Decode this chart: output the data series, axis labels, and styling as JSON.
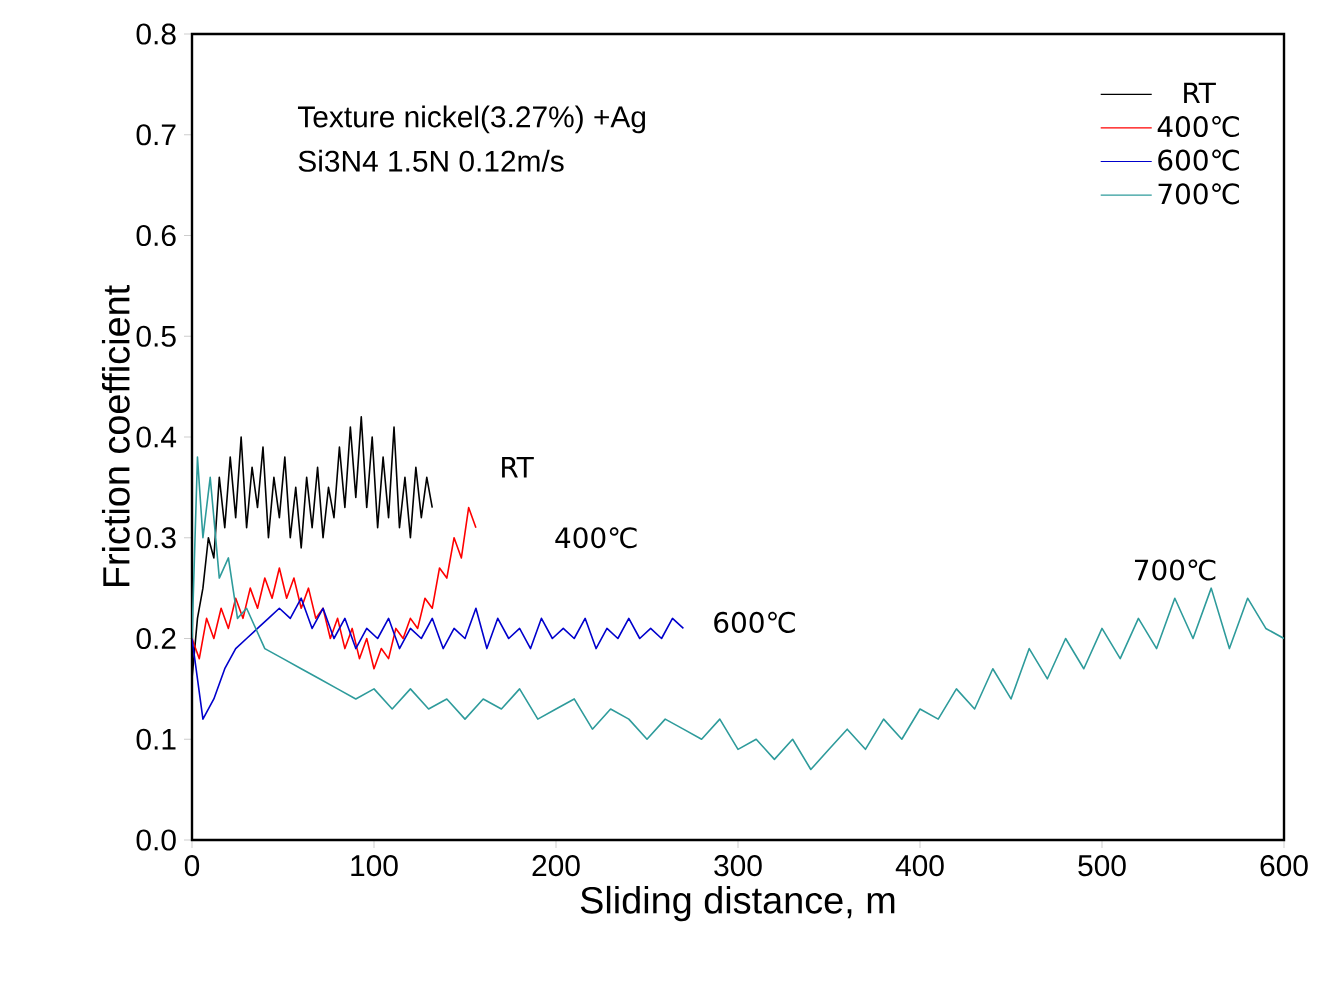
{
  "chart_data": {
    "type": "line",
    "xlabel": "Sliding distance, m",
    "ylabel": "Friction coefficient",
    "xlim": [
      0,
      600
    ],
    "ylim": [
      0,
      0.8
    ],
    "xticks": [
      0,
      100,
      200,
      300,
      400,
      500,
      600
    ],
    "yticks": [
      {
        "value": 0,
        "label": "0.0"
      },
      {
        "value": 0.1,
        "label": "0.1"
      },
      {
        "value": 0.2,
        "label": "0.2"
      },
      {
        "value": 0.3,
        "label": "0.3"
      },
      {
        "value": 0.4,
        "label": "0.4"
      },
      {
        "value": 0.5,
        "label": "0.5"
      },
      {
        "value": 0.6,
        "label": "0.6"
      },
      {
        "value": 0.7,
        "label": "0.7"
      },
      {
        "value": 0.8,
        "label": "0.8"
      }
    ],
    "legend": "top right",
    "grid": false,
    "marker": "none",
    "line_style": "solid",
    "annotations": [
      "Texture nickel(3.27%) +Ag",
      "Si3N4  1.5N 0.12m/s",
      "RT",
      "400℃",
      "600℃",
      "700℃"
    ],
    "series": [
      {
        "name": "RT",
        "color": "#000000",
        "x": [
          0,
          3,
          6,
          9,
          12,
          15,
          18,
          21,
          24,
          27,
          30,
          33,
          36,
          39,
          42,
          45,
          48,
          51,
          54,
          57,
          60,
          63,
          66,
          69,
          72,
          75,
          78,
          81,
          84,
          87,
          90,
          93,
          96,
          99,
          102,
          105,
          108,
          111,
          114,
          117,
          120,
          123,
          126,
          129,
          132
        ],
        "values": [
          0.16,
          0.22,
          0.25,
          0.3,
          0.28,
          0.36,
          0.31,
          0.38,
          0.32,
          0.4,
          0.31,
          0.37,
          0.33,
          0.39,
          0.3,
          0.36,
          0.32,
          0.38,
          0.3,
          0.35,
          0.29,
          0.36,
          0.31,
          0.37,
          0.3,
          0.35,
          0.32,
          0.39,
          0.33,
          0.41,
          0.34,
          0.42,
          0.33,
          0.4,
          0.31,
          0.38,
          0.32,
          0.41,
          0.31,
          0.36,
          0.3,
          0.37,
          0.32,
          0.36,
          0.33
        ]
      },
      {
        "name": "400℃",
        "color": "#ff0000",
        "x": [
          0,
          4,
          8,
          12,
          16,
          20,
          24,
          28,
          32,
          36,
          40,
          44,
          48,
          52,
          56,
          60,
          64,
          68,
          72,
          76,
          80,
          84,
          88,
          92,
          96,
          100,
          104,
          108,
          112,
          116,
          120,
          124,
          128,
          132,
          136,
          140,
          144,
          148,
          152,
          156
        ],
        "values": [
          0.2,
          0.18,
          0.22,
          0.2,
          0.23,
          0.21,
          0.24,
          0.22,
          0.25,
          0.23,
          0.26,
          0.24,
          0.27,
          0.24,
          0.26,
          0.23,
          0.25,
          0.22,
          0.23,
          0.2,
          0.22,
          0.19,
          0.21,
          0.18,
          0.2,
          0.17,
          0.19,
          0.18,
          0.21,
          0.2,
          0.22,
          0.21,
          0.24,
          0.23,
          0.27,
          0.26,
          0.3,
          0.28,
          0.33,
          0.31
        ]
      },
      {
        "name": "600℃",
        "color": "#0000cc",
        "x": [
          0,
          6,
          12,
          18,
          24,
          30,
          36,
          42,
          48,
          54,
          60,
          66,
          72,
          78,
          84,
          90,
          96,
          102,
          108,
          114,
          120,
          126,
          132,
          138,
          144,
          150,
          156,
          162,
          168,
          174,
          180,
          186,
          192,
          198,
          204,
          210,
          216,
          222,
          228,
          234,
          240,
          246,
          252,
          258,
          264,
          270
        ],
        "values": [
          0.2,
          0.12,
          0.14,
          0.17,
          0.19,
          0.2,
          0.21,
          0.22,
          0.23,
          0.22,
          0.24,
          0.21,
          0.23,
          0.2,
          0.22,
          0.19,
          0.21,
          0.2,
          0.22,
          0.19,
          0.21,
          0.2,
          0.22,
          0.19,
          0.21,
          0.2,
          0.23,
          0.19,
          0.22,
          0.2,
          0.21,
          0.19,
          0.22,
          0.2,
          0.21,
          0.2,
          0.22,
          0.19,
          0.21,
          0.2,
          0.22,
          0.2,
          0.21,
          0.2,
          0.22,
          0.21
        ]
      },
      {
        "name": "700℃",
        "color": "#2e9b9b",
        "x": [
          0,
          3,
          6,
          10,
          15,
          20,
          25,
          30,
          40,
          50,
          60,
          70,
          80,
          90,
          100,
          110,
          120,
          130,
          140,
          150,
          160,
          170,
          180,
          190,
          200,
          210,
          220,
          230,
          240,
          250,
          260,
          270,
          280,
          290,
          300,
          310,
          320,
          330,
          340,
          350,
          360,
          370,
          380,
          390,
          400,
          410,
          420,
          430,
          440,
          450,
          460,
          470,
          480,
          490,
          500,
          510,
          520,
          530,
          540,
          550,
          560,
          570,
          580,
          590,
          600
        ],
        "values": [
          0.2,
          0.38,
          0.3,
          0.36,
          0.26,
          0.28,
          0.22,
          0.23,
          0.19,
          0.18,
          0.17,
          0.16,
          0.15,
          0.14,
          0.15,
          0.13,
          0.15,
          0.13,
          0.14,
          0.12,
          0.14,
          0.13,
          0.15,
          0.12,
          0.13,
          0.14,
          0.11,
          0.13,
          0.12,
          0.1,
          0.12,
          0.11,
          0.1,
          0.12,
          0.09,
          0.1,
          0.08,
          0.1,
          0.07,
          0.09,
          0.11,
          0.09,
          0.12,
          0.1,
          0.13,
          0.12,
          0.15,
          0.13,
          0.17,
          0.14,
          0.19,
          0.16,
          0.2,
          0.17,
          0.21,
          0.18,
          0.22,
          0.19,
          0.24,
          0.2,
          0.25,
          0.19,
          0.24,
          0.21,
          0.2
        ]
      }
    ]
  }
}
